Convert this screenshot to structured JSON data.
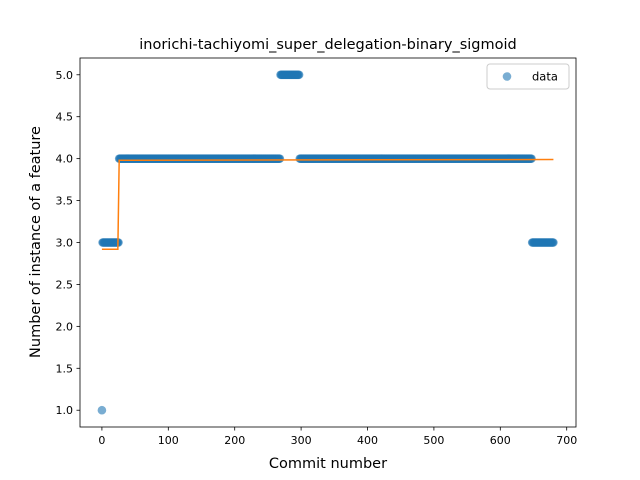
{
  "chart_data": {
    "type": "scatter",
    "title": "inorichi-tachiyomi_super_delegation-binary_sigmoid",
    "xlabel": "Commit number",
    "ylabel": "Number of instance of a feature",
    "xlim": [
      -33,
      714
    ],
    "ylim": [
      0.8,
      5.2
    ],
    "xticks": [
      0,
      100,
      200,
      300,
      400,
      500,
      600,
      700
    ],
    "yticks": [
      1.0,
      1.5,
      2.0,
      2.5,
      3.0,
      3.5,
      4.0,
      4.5,
      5.0
    ],
    "xtick_labels": [
      "0",
      "100",
      "200",
      "300",
      "400",
      "500",
      "600",
      "700"
    ],
    "ytick_labels": [
      "1.0",
      "1.5",
      "2.0",
      "2.5",
      "3.0",
      "3.5",
      "4.0",
      "4.5",
      "5.0"
    ],
    "grid": false,
    "legend": {
      "position": "top-right",
      "entries": [
        "data"
      ]
    },
    "colors": {
      "points": "#1f77b4",
      "fit": "#ff7f0e"
    },
    "scatter_series": {
      "name": "data",
      "segments": [
        {
          "x_start": 0,
          "x_end": 0,
          "y": 1
        },
        {
          "x_start": 1,
          "x_end": 25,
          "y": 3
        },
        {
          "x_start": 26,
          "x_end": 268,
          "y": 4
        },
        {
          "x_start": 269,
          "x_end": 297,
          "y": 5
        },
        {
          "x_start": 298,
          "x_end": 647,
          "y": 4
        },
        {
          "x_start": 648,
          "x_end": 680,
          "y": 3
        }
      ]
    },
    "fit_line": {
      "points": [
        [
          0,
          2.92
        ],
        [
          24,
          2.92
        ],
        [
          26,
          3.98
        ],
        [
          680,
          3.99
        ]
      ]
    }
  }
}
